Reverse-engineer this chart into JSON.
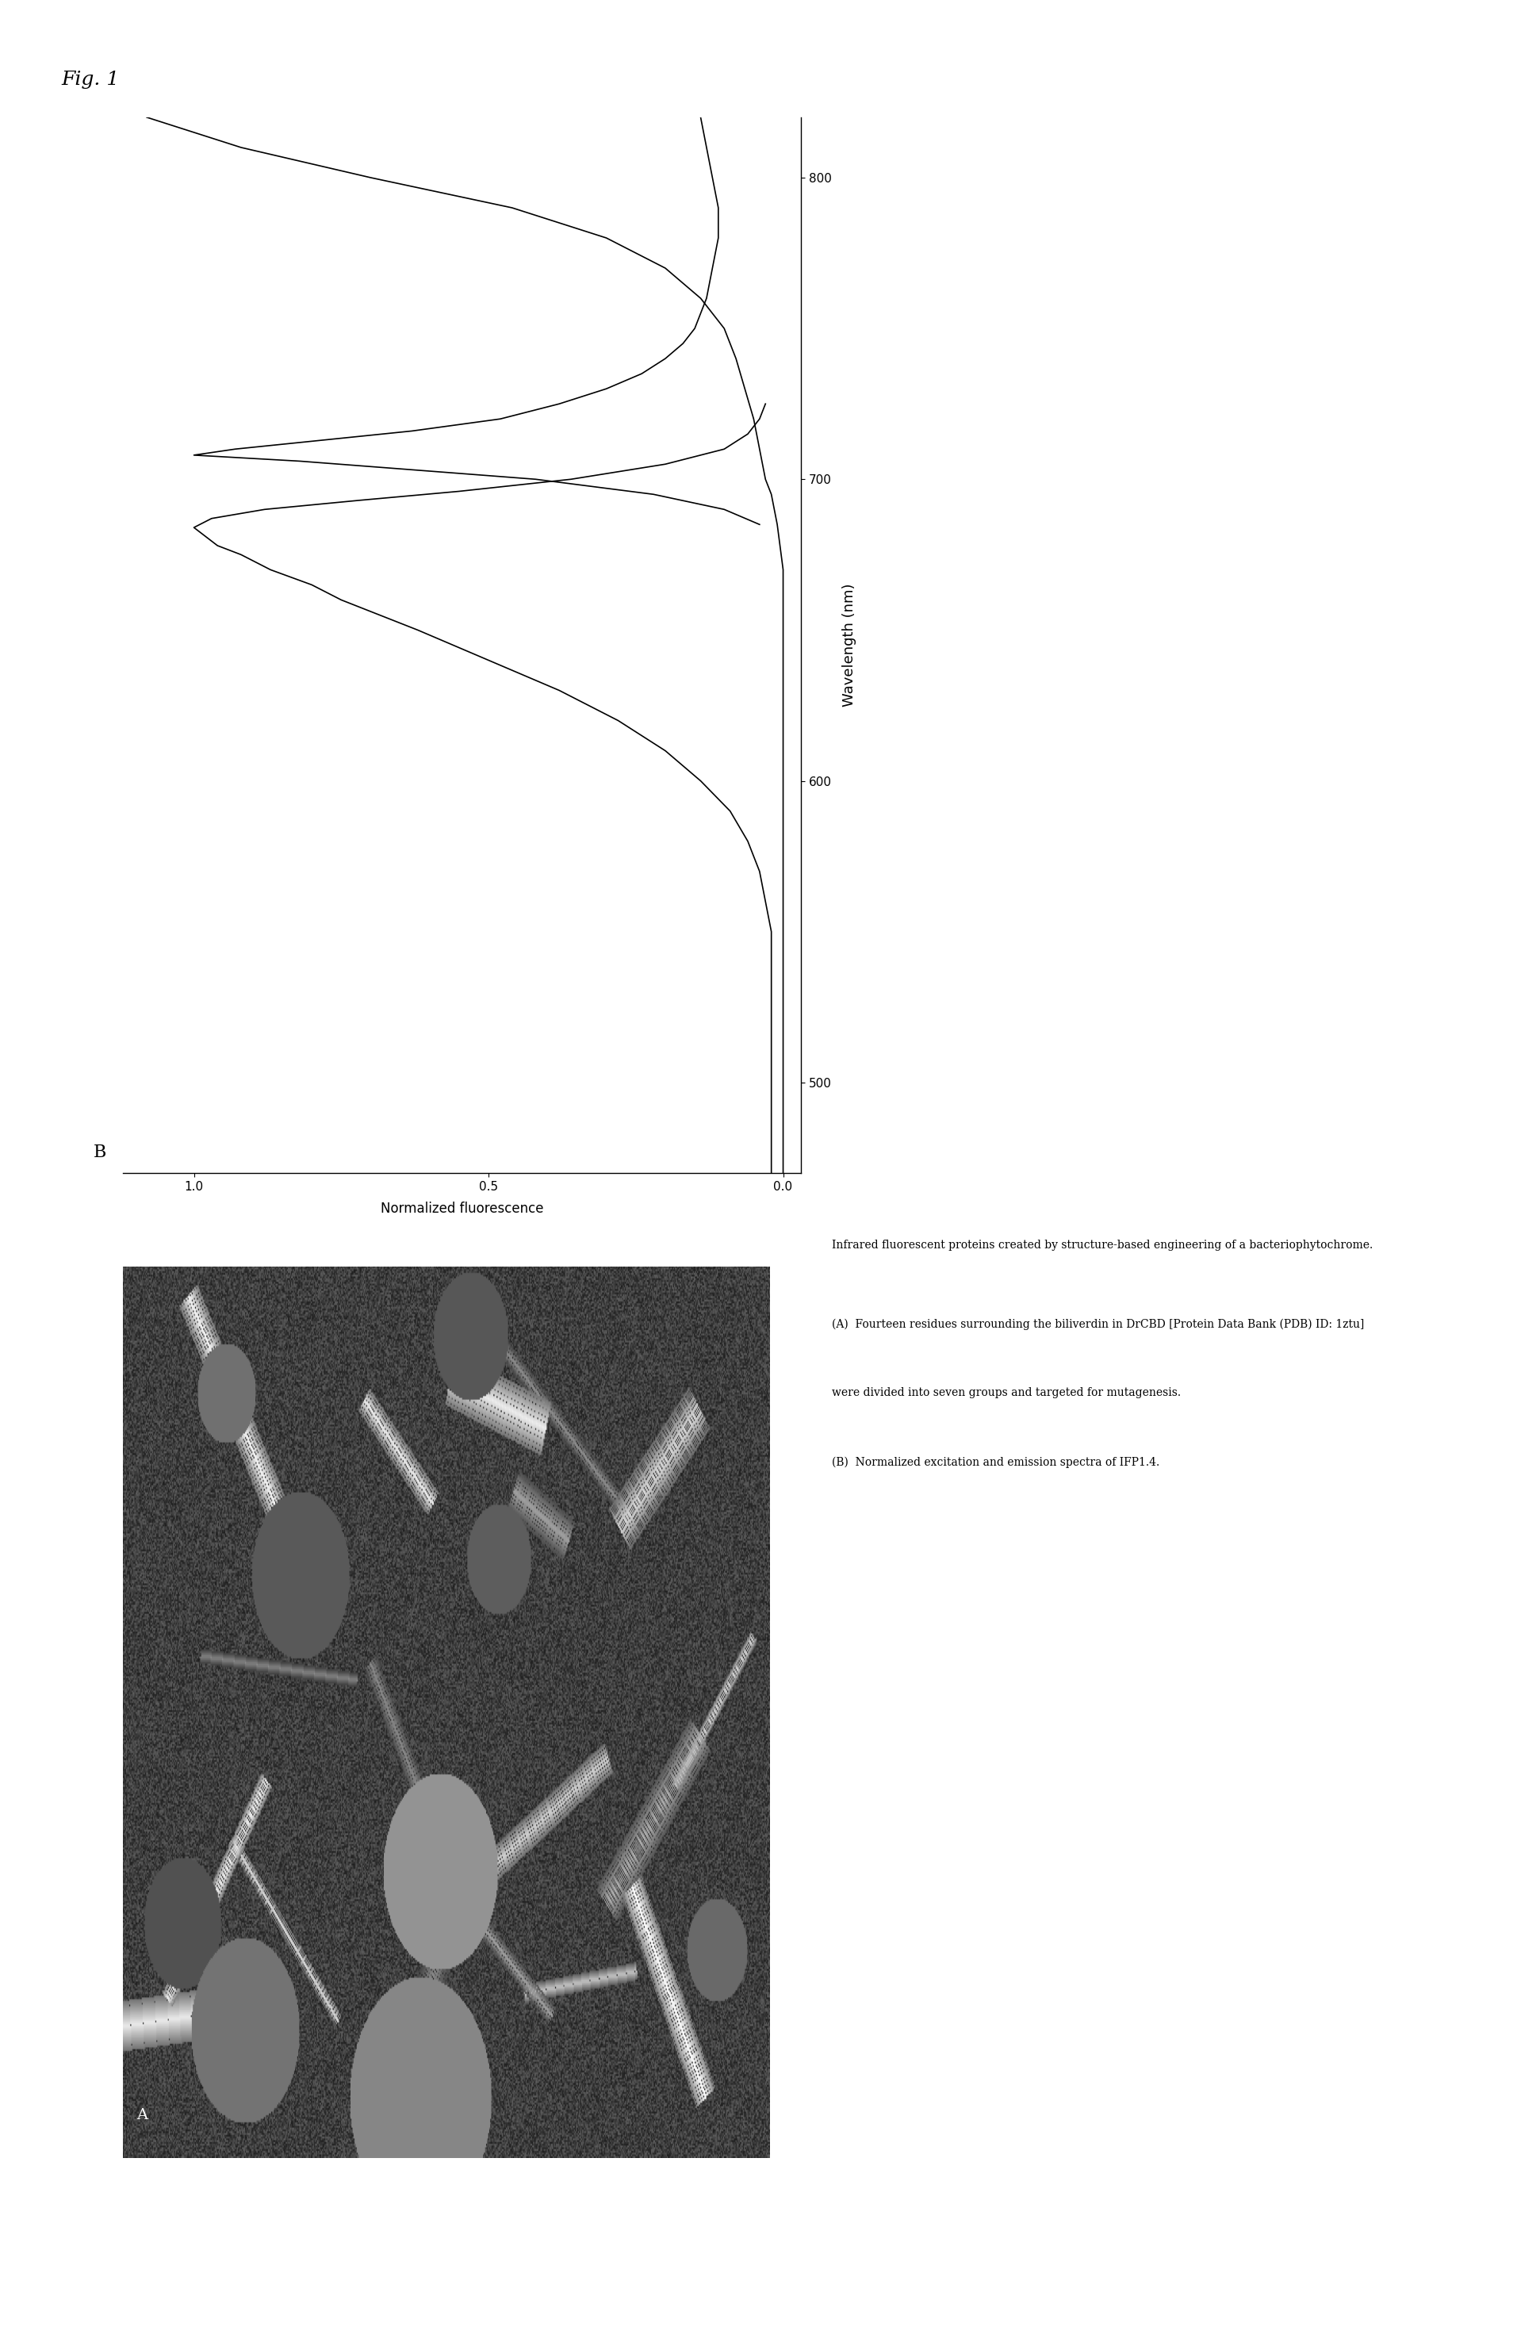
{
  "fig_label": "Fig. 1",
  "panel_b_label": "B",
  "panel_a_label": "A",
  "wavelength_label": "Wavelength (nm)",
  "fluorescence_label": "Normalized fluorescence",
  "x_ticks": [
    500,
    600,
    700,
    800
  ],
  "y_ticks": [
    0,
    0.5,
    1.0
  ],
  "xlim": [
    470,
    820
  ],
  "ylim": [
    -0.02,
    1.1
  ],
  "caption_title": "Infrared fluorescent proteins created by structure-based engineering of a bacteriophytochrome.",
  "caption_a": "(A)  Fourteen residues surrounding the biliverdin in DrCBD [Protein Data Bank (PDB) ID: 1ztu]",
  "caption_a2": "were divided into seven groups and targeted for mutagenesis.",
  "caption_b": "(B)  Normalized excitation and emission spectra of IFP1.4.",
  "line_color": "#000000",
  "background_color": "#ffffff",
  "excitation_data_x": [
    470,
    480,
    490,
    500,
    510,
    520,
    530,
    540,
    550,
    560,
    570,
    580,
    590,
    600,
    610,
    620,
    630,
    640,
    650,
    660,
    665,
    670,
    675,
    678,
    681,
    684,
    687,
    690,
    693,
    696,
    700,
    705,
    710,
    715,
    720,
    725
  ],
  "excitation_data_y": [
    0.02,
    0.02,
    0.02,
    0.02,
    0.02,
    0.02,
    0.02,
    0.02,
    0.02,
    0.03,
    0.04,
    0.06,
    0.09,
    0.14,
    0.2,
    0.28,
    0.38,
    0.5,
    0.62,
    0.75,
    0.8,
    0.87,
    0.92,
    0.96,
    0.98,
    1.0,
    0.97,
    0.88,
    0.72,
    0.55,
    0.36,
    0.2,
    0.1,
    0.06,
    0.04,
    0.03
  ],
  "emission_data_x": [
    685,
    690,
    695,
    700,
    703,
    706,
    708,
    710,
    713,
    716,
    720,
    725,
    730,
    735,
    740,
    745,
    750,
    755,
    760,
    770,
    780,
    790,
    800,
    810,
    820
  ],
  "emission_data_y": [
    0.04,
    0.1,
    0.22,
    0.42,
    0.62,
    0.82,
    1.0,
    0.93,
    0.78,
    0.63,
    0.48,
    0.38,
    0.3,
    0.24,
    0.2,
    0.17,
    0.15,
    0.14,
    0.13,
    0.12,
    0.11,
    0.11,
    0.12,
    0.13,
    0.14
  ],
  "scatter_rise_x": [
    470,
    490,
    510,
    530,
    550,
    570,
    590,
    610,
    630,
    650,
    670,
    685,
    695,
    700,
    710,
    720,
    730,
    740,
    750,
    760,
    770,
    780,
    790,
    800,
    810,
    820
  ],
  "scatter_rise_y": [
    0.0,
    0.0,
    0.0,
    0.0,
    0.0,
    0.0,
    0.0,
    0.0,
    0.0,
    0.0,
    0.0,
    0.01,
    0.02,
    0.03,
    0.04,
    0.05,
    0.065,
    0.08,
    0.1,
    0.14,
    0.2,
    0.3,
    0.46,
    0.7,
    0.92,
    1.08
  ]
}
